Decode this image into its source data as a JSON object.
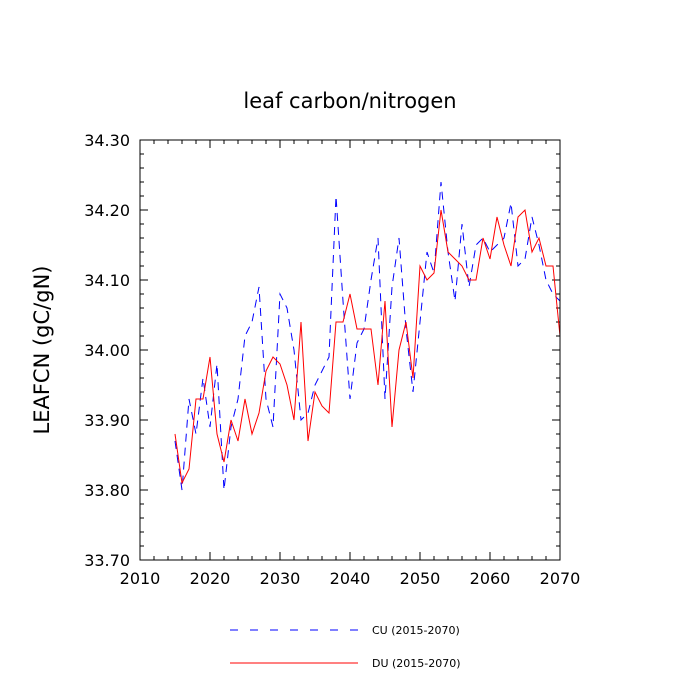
{
  "chart_data": {
    "type": "line",
    "title": "leaf carbon/nitrogen",
    "xlabel": "",
    "ylabel": "LEAFCN  (gC/gN)",
    "xlim": [
      2010,
      2070
    ],
    "ylim": [
      33.7,
      34.3
    ],
    "x_ticks": [
      2010,
      2020,
      2030,
      2040,
      2050,
      2060,
      2070
    ],
    "x_tick_labels": [
      "2010",
      "2020",
      "2030",
      "2040",
      "2050",
      "2060",
      "2070"
    ],
    "y_ticks": [
      33.7,
      33.8,
      33.9,
      34.0,
      34.1,
      34.2,
      34.3
    ],
    "y_tick_labels": [
      "33.70",
      "33.80",
      "33.90",
      "34.00",
      "34.10",
      "34.20",
      "34.30"
    ],
    "grid": false,
    "legend_position": "bottom",
    "x": [
      2015,
      2016,
      2017,
      2018,
      2019,
      2020,
      2021,
      2022,
      2023,
      2024,
      2025,
      2026,
      2027,
      2028,
      2029,
      2030,
      2031,
      2032,
      2033,
      2034,
      2035,
      2036,
      2037,
      2038,
      2039,
      2040,
      2041,
      2042,
      2043,
      2044,
      2045,
      2046,
      2047,
      2048,
      2049,
      2050,
      2051,
      2052,
      2053,
      2054,
      2055,
      2056,
      2057,
      2058,
      2059,
      2060,
      2061,
      2062,
      2063,
      2064,
      2065,
      2066,
      2067,
      2068,
      2069,
      2070
    ],
    "series": [
      {
        "name": "CU (2015-2070)",
        "color": "#0000ff",
        "dash": "dashed",
        "values": [
          33.87,
          33.8,
          33.93,
          33.88,
          33.96,
          33.89,
          33.98,
          33.8,
          33.89,
          33.93,
          34.02,
          34.04,
          34.09,
          33.93,
          33.89,
          34.08,
          34.06,
          34.0,
          33.9,
          33.91,
          33.95,
          33.97,
          33.99,
          34.22,
          34.07,
          33.93,
          34.01,
          34.03,
          34.1,
          34.16,
          33.93,
          34.09,
          34.16,
          34.03,
          33.94,
          34.04,
          34.14,
          34.11,
          34.24,
          34.14,
          34.07,
          34.18,
          34.09,
          34.15,
          34.16,
          34.14,
          34.15,
          34.16,
          34.21,
          34.12,
          34.13,
          34.19,
          34.15,
          34.1,
          34.08,
          34.07
        ]
      },
      {
        "name": "DU (2015-2070)",
        "color": "#ff0000",
        "dash": "solid",
        "values": [
          33.88,
          33.81,
          33.83,
          33.93,
          33.93,
          33.99,
          33.88,
          33.84,
          33.9,
          33.87,
          33.93,
          33.88,
          33.91,
          33.97,
          33.99,
          33.98,
          33.95,
          33.9,
          34.04,
          33.87,
          33.94,
          33.92,
          33.91,
          34.04,
          34.04,
          34.08,
          34.03,
          34.03,
          34.03,
          33.95,
          34.07,
          33.89,
          34.0,
          34.04,
          33.96,
          34.12,
          34.1,
          34.11,
          34.2,
          34.14,
          34.13,
          34.12,
          34.1,
          34.1,
          34.16,
          34.13,
          34.19,
          34.15,
          34.12,
          34.19,
          34.2,
          34.14,
          34.16,
          34.12,
          34.12,
          34.02
        ]
      }
    ]
  }
}
